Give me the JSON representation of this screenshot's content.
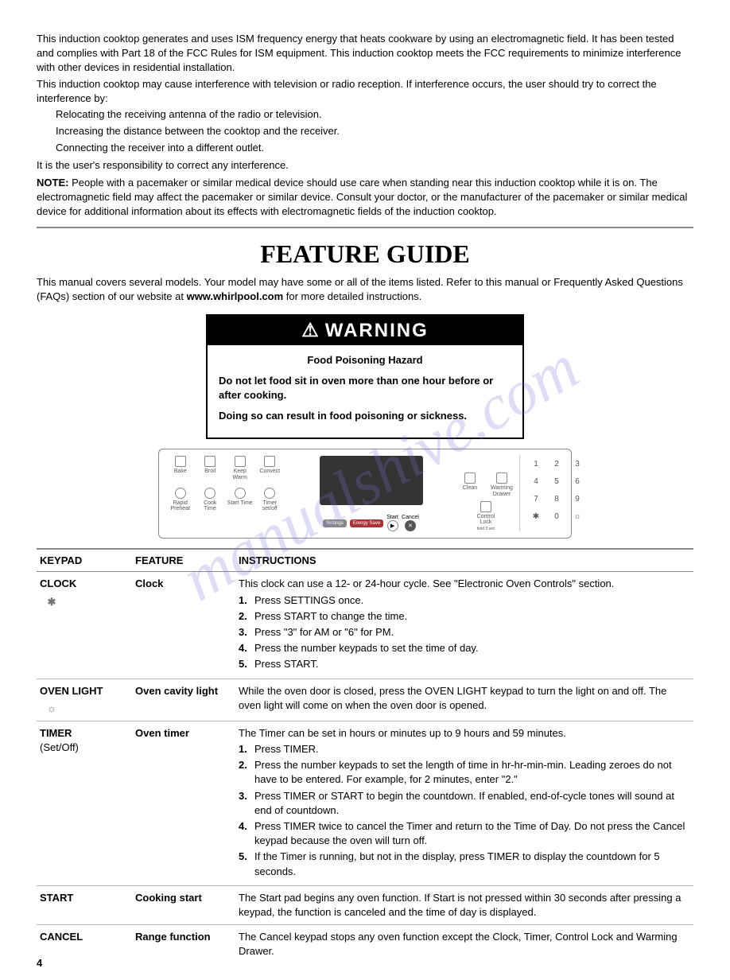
{
  "intro": {
    "p1": "This induction cooktop generates and uses ISM frequency energy that heats cookware by using an electromagnetic field. It has been tested and complies with Part 18 of the FCC Rules for ISM equipment. This induction cooktop meets the FCC requirements to minimize interference with other devices in residential installation.",
    "p2": "This induction cooktop may cause interference with television or radio reception. If interference occurs, the user should try to correct the interference by:",
    "b1": "Relocating the receiving antenna of the radio or television.",
    "b2": "Increasing the distance between the cooktop and the receiver.",
    "b3": "Connecting the receiver into a different outlet.",
    "p3": "It is the user's responsibility to correct any interference.",
    "note_label": "NOTE:",
    "note": " People with a pacemaker or similar medical device should use care when standing near this induction cooktop while it is on. The electromagnetic field may affect the pacemaker or similar device. Consult your doctor, or the manufacturer of the pacemaker or similar medical device for additional information about its effects with electromagnetic fields of the induction cooktop."
  },
  "feature_guide": {
    "title": "FEATURE GUIDE",
    "subtitle_a": "This manual covers several models. Your model may have some or all of the items listed. Refer to this manual or Frequently Asked Questions (FAQs) section of our website at ",
    "subtitle_bold": "www.whirlpool.com",
    "subtitle_b": " for more detailed instructions."
  },
  "warning": {
    "header": "WARNING",
    "hazard": "Food Poisoning Hazard",
    "line1": "Do not let food sit in oven more than one hour before or after cooking.",
    "line2": "Doing so can result in food poisoning or sickness."
  },
  "control_panel": {
    "row1": [
      "Bake",
      "Broil",
      "Keep Warm",
      "Convect"
    ],
    "row2": [
      "Rapid Preheat",
      "Cook Time",
      "Start Time",
      "Timer set/off"
    ],
    "pills": {
      "settings": "Settings",
      "energy": "Energy Save"
    },
    "start": "Start",
    "cancel": "Cancel",
    "clean": "Clean",
    "warming": "Warming Drawer",
    "lock": "Control Lock",
    "hold": "hold 3 sec",
    "keypad": [
      "1",
      "2",
      "3",
      "4",
      "5",
      "6",
      "7",
      "8",
      "9",
      "✱",
      "0",
      "☼"
    ]
  },
  "table": {
    "headers": {
      "keypad": "KEYPAD",
      "feature": "FEATURE",
      "instructions": "INSTRUCTIONS"
    },
    "rows": [
      {
        "keypad": "CLOCK",
        "keypad_icon": "✱",
        "feature": "Clock",
        "intro": "This clock can use a 12- or 24-hour cycle. See \"Electronic Oven Controls\" section.",
        "steps": [
          "Press SETTINGS once.",
          "Press START to change the time.",
          "Press \"3\" for AM or \"6\" for PM.",
          "Press the number keypads to set the time of day.",
          "Press START."
        ]
      },
      {
        "keypad": "OVEN LIGHT",
        "keypad_icon": "☼",
        "feature": "Oven cavity light",
        "intro": "While the oven door is closed, press the OVEN LIGHT keypad to turn the light on and off. The oven light will come on when the oven door is opened."
      },
      {
        "keypad": "TIMER",
        "keypad_sub": "(Set/Off)",
        "feature": "Oven timer",
        "intro": "The Timer can be set in hours or minutes up to 9 hours and 59 minutes.",
        "steps": [
          "Press TIMER.",
          "Press the number keypads to set the length of time in hr-hr-min-min. Leading zeroes do not have to be entered. For example, for 2 minutes, enter \"2.\"",
          "Press TIMER or START to begin the countdown. If enabled, end-of-cycle tones will sound at end of countdown.",
          "Press TIMER twice to cancel the Timer and return to the Time of Day. Do not press the Cancel keypad because the oven will turn off.",
          "If the Timer is running, but not in the display, press TIMER to display the countdown for 5 seconds."
        ]
      },
      {
        "keypad": "START",
        "feature": "Cooking start",
        "intro": "The Start pad begins any oven function. If Start is not pressed within 30 seconds after pressing a keypad, the function is canceled and the time of day is displayed."
      },
      {
        "keypad": "CANCEL",
        "feature": "Range function",
        "intro": "The Cancel keypad stops any oven function except the Clock, Timer, Control Lock and Warming Drawer."
      }
    ]
  },
  "page_number": "4",
  "watermark": "manualshive.com"
}
